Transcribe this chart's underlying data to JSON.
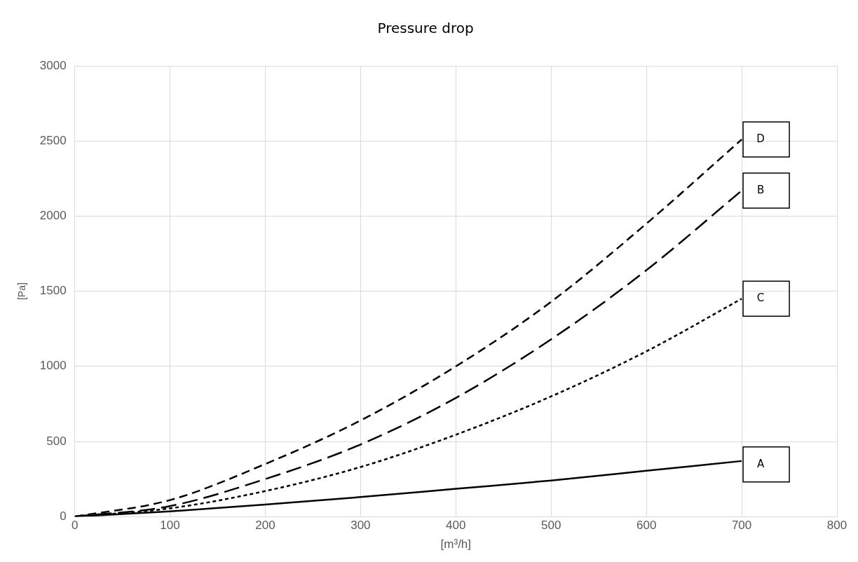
{
  "chart_data": {
    "type": "line",
    "title": "Pressure drop",
    "xlabel": "[m³/h]",
    "ylabel": "[Pa]",
    "x": [
      0,
      100,
      200,
      300,
      400,
      500,
      600,
      700
    ],
    "series": [
      {
        "name": "A",
        "color": "#000000",
        "line_style": "solid",
        "values": [
          0,
          35,
          80,
          130,
          185,
          240,
          305,
          370
        ]
      },
      {
        "name": "B",
        "color": "#000000",
        "line_style": "dashed",
        "values": [
          0,
          70,
          250,
          480,
          790,
          1180,
          1640,
          2170
        ]
      },
      {
        "name": "C",
        "color": "#000000",
        "line_style": "dotted",
        "values": [
          0,
          55,
          170,
          330,
          545,
          800,
          1100,
          1450
        ]
      },
      {
        "name": "D",
        "color": "#000000",
        "line_style": "dashed",
        "values": [
          0,
          110,
          350,
          640,
          1000,
          1430,
          1950,
          2510
        ]
      }
    ],
    "xlim": [
      0,
      800
    ],
    "xticks": [
      0,
      100,
      200,
      300,
      400,
      500,
      600,
      700,
      800
    ],
    "ylim": [
      0,
      3000
    ],
    "yticks": [
      0,
      500,
      1000,
      1500,
      2000,
      2500,
      3000
    ],
    "grid": true,
    "legend": false,
    "marker": "none"
  }
}
